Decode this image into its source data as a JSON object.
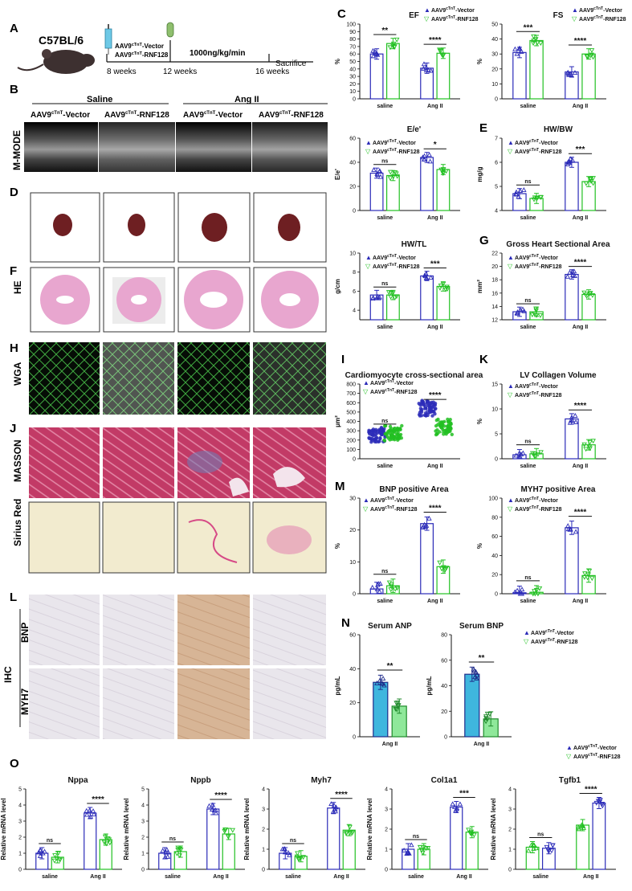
{
  "panel_letters": {
    "A": "A",
    "B": "B",
    "C": "C",
    "D": "D",
    "E": "E",
    "F": "F",
    "G": "G",
    "H": "H",
    "I": "I",
    "J": "J",
    "K": "K",
    "L": "L",
    "M": "M",
    "N": "N",
    "O": "O"
  },
  "panelA": {
    "strain": "C57BL/6",
    "vec": "AAV9",
    "vec_sup": "cTnT",
    "vec_sfx": "-Vector",
    "rnf_sfx": "-RNF128",
    "dose": "1000ng/kg/min",
    "t1": "8 weeks",
    "t2": "12 weeks",
    "t3": "16 weeks",
    "end": "Sacrifice"
  },
  "panelB": {
    "saline": "Saline",
    "angii": "Ang II",
    "mmode": "M-MODE",
    "grp1": "-Vector",
    "grp2": "-RNF128",
    "prefix": "AAV9",
    "sup": "cTnT"
  },
  "row_labels": {
    "he": "HE",
    "wga": "WGA",
    "masson": "MASSON",
    "sirius": "Sirius Red",
    "ihc": "IHC",
    "bnp": "BNP",
    "myh7": "MYH7"
  },
  "legend": {
    "prefix": "AAV9",
    "sup": "cTnT",
    "vector": "-Vector",
    "rnf": "-RNF128"
  },
  "colors": {
    "vector": "#2b2bb8",
    "rnf": "#22c022",
    "vector_fill_n": "#3fb6de",
    "rnf_fill_n": "#8fe89a",
    "masson_bg": "#c23a66",
    "sirius_bg": "#f2ebcf",
    "wga_bg": "#060c06"
  },
  "chart_data": [
    {
      "id": "EF",
      "type": "bar",
      "title": "EF",
      "ylabel": "%",
      "categories": [
        "saline",
        "Ang II"
      ],
      "ylim": [
        0,
        100
      ],
      "yticks": [
        0,
        10,
        20,
        30,
        40,
        50,
        60,
        70,
        80,
        90,
        100
      ],
      "series": [
        {
          "name": "Vector",
          "values": [
            60,
            41
          ]
        },
        {
          "name": "RNF128",
          "values": [
            74,
            61
          ]
        }
      ],
      "sig": [
        "**",
        "****"
      ]
    },
    {
      "id": "FS",
      "type": "bar",
      "title": "FS",
      "ylabel": "%",
      "categories": [
        "saline",
        "Ang II"
      ],
      "ylim": [
        0,
        50
      ],
      "yticks": [
        0,
        10,
        20,
        30,
        40,
        50
      ],
      "series": [
        {
          "name": "Vector",
          "values": [
            31,
            18
          ]
        },
        {
          "name": "RNF128",
          "values": [
            39,
            30
          ]
        }
      ],
      "sig": [
        "***",
        "****"
      ]
    },
    {
      "id": "Ee",
      "type": "bar",
      "title": "E/e'",
      "ylabel": "E/e'",
      "categories": [
        "saline",
        "Ang II"
      ],
      "ylim": [
        0,
        60
      ],
      "yticks": [
        0,
        20,
        40,
        60
      ],
      "series": [
        {
          "name": "Vector",
          "values": [
            31,
            44
          ]
        },
        {
          "name": "RNF128",
          "values": [
            29,
            34
          ]
        }
      ],
      "sig": [
        "ns",
        "*"
      ]
    },
    {
      "id": "HWBW",
      "type": "bar",
      "title": "HW/BW",
      "ylabel": "mg/g",
      "categories": [
        "saline",
        "Ang II"
      ],
      "ylim": [
        4,
        7
      ],
      "yticks": [
        4,
        5,
        6,
        7
      ],
      "series": [
        {
          "name": "Vector",
          "values": [
            4.7,
            6.0
          ]
        },
        {
          "name": "RNF128",
          "values": [
            4.5,
            5.2
          ]
        }
      ],
      "sig": [
        "ns",
        "***"
      ]
    },
    {
      "id": "HWTL",
      "type": "bar",
      "title": "HW/TL",
      "ylabel": "g/cm",
      "categories": [
        "saline",
        "Ang II"
      ],
      "ylim": [
        3,
        10
      ],
      "yticks": [
        4,
        6,
        8,
        10
      ],
      "series": [
        {
          "name": "Vector",
          "values": [
            5.6,
            7.6
          ]
        },
        {
          "name": "RNF128",
          "values": [
            5.6,
            6.5
          ]
        }
      ],
      "sig": [
        "ns",
        "***"
      ]
    },
    {
      "id": "GHSA",
      "type": "bar",
      "title": "Gross Heart Sectional Area",
      "ylabel": "mm²",
      "categories": [
        "saline",
        "Ang II"
      ],
      "ylim": [
        12,
        22
      ],
      "yticks": [
        12,
        14,
        16,
        18,
        20,
        22
      ],
      "series": [
        {
          "name": "Vector",
          "values": [
            13.2,
            18.8
          ]
        },
        {
          "name": "RNF128",
          "values": [
            13.2,
            15.8
          ]
        }
      ],
      "sig": [
        "ns",
        "****"
      ]
    },
    {
      "id": "CSA",
      "type": "scatter",
      "title": "Cardiomyocyte cross-sectional area",
      "ylabel": "μm²",
      "categories": [
        "saline",
        "Ang II"
      ],
      "ylim": [
        0,
        800
      ],
      "yticks": [
        0,
        100,
        200,
        300,
        400,
        500,
        600,
        700,
        800
      ],
      "series": [
        {
          "name": "Vector",
          "values": [
            250,
            540
          ]
        },
        {
          "name": "RNF128",
          "values": [
            275,
            340
          ]
        }
      ],
      "sig": [
        "ns",
        "****"
      ]
    },
    {
      "id": "LVCV",
      "type": "bar",
      "title": "LV Collagen Volume",
      "ylabel": "%",
      "categories": [
        "saline",
        "Ang II"
      ],
      "ylim": [
        0,
        15
      ],
      "yticks": [
        0,
        5,
        10,
        15
      ],
      "series": [
        {
          "name": "Vector",
          "values": [
            0.8,
            8
          ]
        },
        {
          "name": "RNF128",
          "values": [
            1.0,
            2.8
          ]
        }
      ],
      "sig": [
        "ns",
        "****"
      ]
    },
    {
      "id": "BNPA",
      "type": "bar",
      "title": "BNP positive Area",
      "ylabel": "%",
      "categories": [
        "saline",
        "Ang II"
      ],
      "ylim": [
        0,
        30
      ],
      "yticks": [
        0,
        10,
        20,
        30
      ],
      "series": [
        {
          "name": "Vector",
          "values": [
            1.5,
            22
          ]
        },
        {
          "name": "RNF128",
          "values": [
            2.5,
            8.5
          ]
        }
      ],
      "sig": [
        "ns",
        "****"
      ]
    },
    {
      "id": "MYH7A",
      "type": "bar",
      "title": "MYH7 positive Area",
      "ylabel": "%",
      "categories": [
        "saline",
        "Ang II"
      ],
      "ylim": [
        0,
        100
      ],
      "yticks": [
        0,
        20,
        40,
        60,
        80,
        100
      ],
      "series": [
        {
          "name": "Vector",
          "values": [
            1,
            69
          ]
        },
        {
          "name": "RNF128",
          "values": [
            1.5,
            19
          ]
        }
      ],
      "sig": [
        "ns",
        "****"
      ]
    },
    {
      "id": "ANP",
      "type": "bar",
      "title": "Serum ANP",
      "ylabel": "pg/mL",
      "categories": [
        "Ang II"
      ],
      "ylim": [
        0,
        60
      ],
      "yticks": [
        0,
        20,
        40,
        60
      ],
      "series": [
        {
          "name": "Vector",
          "values": [
            32
          ]
        },
        {
          "name": "RNF128",
          "values": [
            18
          ]
        }
      ],
      "sig": [
        "**"
      ]
    },
    {
      "id": "SBNP",
      "type": "bar",
      "title": "Serum BNP",
      "ylabel": "pg/mL",
      "categories": [
        "Ang II"
      ],
      "ylim": [
        0,
        80
      ],
      "yticks": [
        0,
        20,
        40,
        60,
        80
      ],
      "series": [
        {
          "name": "Vector",
          "values": [
            49
          ]
        },
        {
          "name": "RNF128",
          "values": [
            14
          ]
        }
      ],
      "sig": [
        "**"
      ]
    },
    {
      "id": "Nppa",
      "type": "bar",
      "title": "Nppa",
      "ylabel": "Relative mRNA level",
      "categories": [
        "saline",
        "Ang II"
      ],
      "ylim": [
        0,
        5
      ],
      "yticks": [
        0,
        1,
        2,
        3,
        4,
        5
      ],
      "series": [
        {
          "name": "Vector",
          "values": [
            1.0,
            3.5
          ]
        },
        {
          "name": "RNF128",
          "values": [
            0.75,
            1.85
          ]
        }
      ],
      "sig": [
        "ns",
        "****"
      ]
    },
    {
      "id": "Nppb",
      "type": "bar",
      "title": "Nppb",
      "ylabel": "Relative mRNA level",
      "categories": [
        "saline",
        "Ang II"
      ],
      "ylim": [
        0,
        5
      ],
      "yticks": [
        0,
        1,
        2,
        3,
        4,
        5
      ],
      "series": [
        {
          "name": "Vector",
          "values": [
            1.0,
            3.75
          ]
        },
        {
          "name": "RNF128",
          "values": [
            1.1,
            2.2
          ]
        }
      ],
      "sig": [
        "ns",
        "****"
      ]
    },
    {
      "id": "Myh7",
      "type": "bar",
      "title": "Myh7",
      "ylabel": "Relative mRNA level",
      "categories": [
        "saline",
        "Ang II"
      ],
      "ylim": [
        0,
        4
      ],
      "yticks": [
        0,
        1,
        2,
        3,
        4
      ],
      "series": [
        {
          "name": "Vector",
          "values": [
            0.8,
            3.05
          ]
        },
        {
          "name": "RNF128",
          "values": [
            0.65,
            1.95
          ]
        }
      ],
      "sig": [
        "ns",
        "****"
      ]
    },
    {
      "id": "Col1a1",
      "type": "bar",
      "title": "Col1a1",
      "ylabel": "Relative mRNA level",
      "categories": [
        "saline",
        "Ang II"
      ],
      "ylim": [
        0,
        4
      ],
      "yticks": [
        0,
        1,
        2,
        3,
        4
      ],
      "series": [
        {
          "name": "Vector",
          "values": [
            1.0,
            3.1
          ]
        },
        {
          "name": "RNF128",
          "values": [
            1.0,
            1.85
          ]
        }
      ],
      "sig": [
        "ns",
        "***"
      ]
    },
    {
      "id": "Tgfb1",
      "type": "bar",
      "title": "Tgfb1",
      "ylabel": "Relative mRNA level",
      "categories": [
        "saline",
        "Ang II"
      ],
      "ylim": [
        0,
        4
      ],
      "yticks": [
        0,
        1,
        2,
        3,
        4
      ],
      "series": [
        {
          "name": "Vector",
          "values": [
            1.1,
            2.2
          ]
        },
        {
          "name": "RNF128",
          "values": [
            1.05,
            3.3
          ]
        }
      ],
      "sig": [
        "ns",
        "****"
      ]
    }
  ]
}
